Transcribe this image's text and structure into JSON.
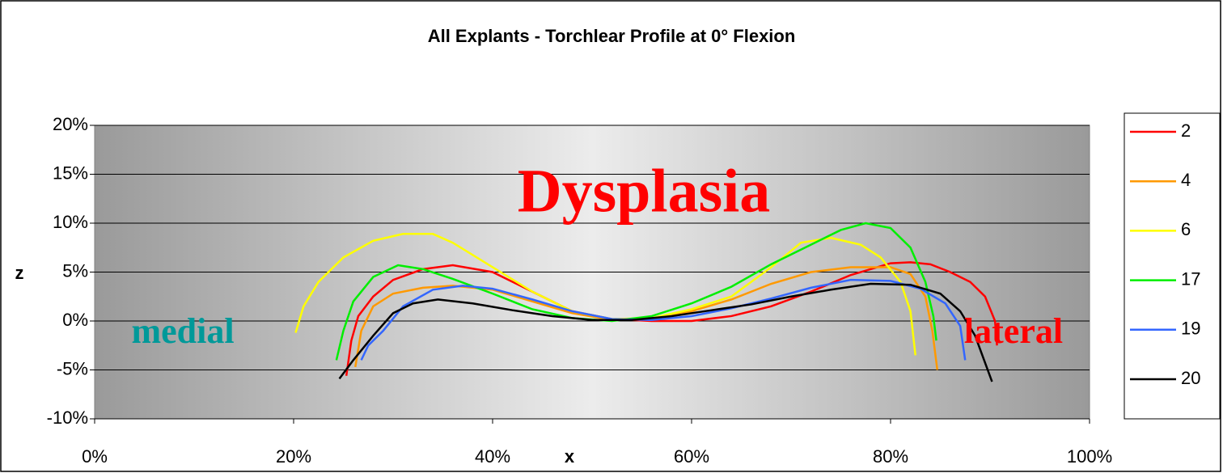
{
  "chart_data": {
    "type": "line",
    "title": "All Explants - Torchlear Profile at 0° Flexion",
    "x_label": "x",
    "y_label": "z",
    "annotations": [
      "Dysplasia",
      "medial",
      "lateral"
    ],
    "xlim": [
      0,
      100
    ],
    "ylim": [
      -10,
      20
    ],
    "xticks": [
      {
        "value": 0,
        "label": "0%"
      },
      {
        "value": 20,
        "label": "20%"
      },
      {
        "value": 40,
        "label": "40%"
      },
      {
        "value": 60,
        "label": "60%"
      },
      {
        "value": 80,
        "label": "80%"
      },
      {
        "value": 100,
        "label": "100%"
      }
    ],
    "yticks": [
      {
        "value": -10,
        "label": "-10%"
      },
      {
        "value": -5,
        "label": "-5%"
      },
      {
        "value": 0,
        "label": "0%"
      },
      {
        "value": 5,
        "label": "5%"
      },
      {
        "value": 10,
        "label": "10%"
      },
      {
        "value": 15,
        "label": "15%"
      },
      {
        "value": 20,
        "label": "20%"
      }
    ],
    "grid": true,
    "legend": "right",
    "series": [
      {
        "name": "2",
        "color": "#ff0000",
        "x": [
          25.3,
          25.8,
          26.5,
          28,
          30,
          33,
          36,
          40,
          44,
          48,
          52,
          56,
          60,
          64,
          68,
          72,
          76,
          80,
          82,
          84,
          86,
          88,
          89.5,
          90.5,
          90.7
        ],
        "values": [
          -5.6,
          -2,
          0.5,
          2.5,
          4.2,
          5.3,
          5.7,
          5,
          3,
          1,
          0.2,
          0,
          0,
          0.5,
          1.5,
          3,
          4.7,
          5.9,
          6,
          5.8,
          5,
          4,
          2.5,
          0,
          -2.5
        ]
      },
      {
        "name": "4",
        "color": "#ff9900",
        "x": [
          26.2,
          26.8,
          28,
          30,
          33,
          36,
          40,
          44,
          48,
          52,
          56,
          60,
          64,
          68,
          72,
          76,
          80,
          82,
          83.5,
          84.2,
          84.7
        ],
        "values": [
          -4.7,
          -1,
          1.5,
          2.8,
          3.4,
          3.6,
          3.2,
          2,
          0.8,
          0.1,
          0.2,
          1,
          2.2,
          3.8,
          5,
          5.5,
          5.5,
          4.8,
          2.5,
          -1,
          -5
        ]
      },
      {
        "name": "6",
        "color": "#ffff00",
        "x": [
          20.2,
          21,
          22.5,
          25,
          28,
          31,
          34,
          36,
          40,
          44,
          48,
          52,
          56,
          60,
          64,
          68,
          71,
          74,
          77,
          79,
          81,
          82,
          82.5
        ],
        "values": [
          -1.2,
          1.5,
          4,
          6.5,
          8.2,
          8.9,
          8.9,
          8,
          5.5,
          3,
          1,
          0.2,
          0.3,
          1.2,
          2.5,
          5.5,
          8,
          8.5,
          7.8,
          6.5,
          4,
          1,
          -3.5
        ]
      },
      {
        "name": "17",
        "color": "#00ee00",
        "x": [
          24.3,
          25,
          26,
          28,
          30.5,
          33,
          36,
          40,
          44,
          48,
          52,
          56,
          60,
          64,
          68,
          72,
          75,
          77.5,
          80,
          82,
          83.5,
          84.3,
          84.6
        ],
        "values": [
          -4,
          -1,
          2,
          4.5,
          5.7,
          5.3,
          4.3,
          2.8,
          1.2,
          0.3,
          0,
          0.5,
          1.8,
          3.5,
          5.8,
          7.8,
          9.3,
          10,
          9.5,
          7.5,
          4,
          0.5,
          -2
        ]
      },
      {
        "name": "19",
        "color": "#3366ff",
        "x": [
          26.8,
          27.5,
          29,
          31,
          34,
          37,
          40,
          44,
          48,
          52,
          56,
          60,
          64,
          68,
          72,
          76,
          80,
          83,
          85.5,
          87,
          87.5
        ],
        "values": [
          -4,
          -2.5,
          -1,
          1.5,
          3.2,
          3.6,
          3.3,
          2.2,
          1,
          0.2,
          0.1,
          0.5,
          1.3,
          2.3,
          3.4,
          4.2,
          4.1,
          3.3,
          1.8,
          -0.5,
          -4
        ]
      },
      {
        "name": "20",
        "color": "#000000",
        "x": [
          24.6,
          26,
          28,
          30,
          32,
          34.5,
          38,
          42,
          46,
          50,
          54,
          58,
          62,
          66,
          70,
          74,
          78,
          82,
          85,
          87,
          88.5,
          90.2
        ],
        "values": [
          -5.9,
          -4,
          -1.5,
          0.8,
          1.8,
          2.2,
          1.8,
          1.1,
          0.5,
          0.1,
          0.1,
          0.5,
          1.1,
          1.7,
          2.5,
          3.2,
          3.8,
          3.7,
          2.8,
          1,
          -1.5,
          -6.2
        ]
      }
    ]
  }
}
